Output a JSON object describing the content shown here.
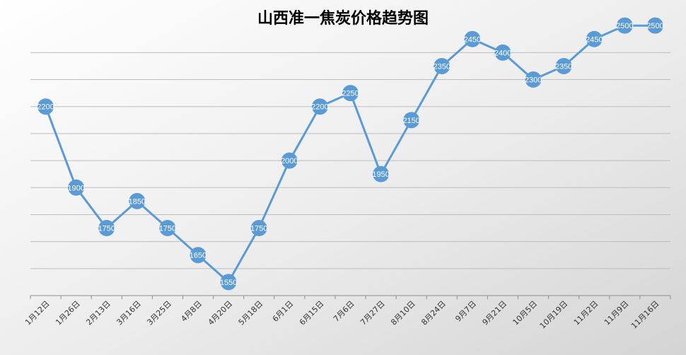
{
  "chart_data": {
    "type": "line",
    "title": "山西准一焦炭价格趋势图",
    "xlabel": "",
    "ylabel": "",
    "categories": [
      "1月12日",
      "1月26日",
      "2月13日",
      "3月16日",
      "3月25日",
      "4月8日",
      "4月20日",
      "5月18日",
      "6月1日",
      "6月15日",
      "7月6日",
      "7月27日",
      "8月10日",
      "8月24日",
      "9月7日",
      "9月21日",
      "10月5日",
      "10月19日",
      "11月2日",
      "11月9日",
      "11月16日"
    ],
    "series": [
      {
        "values": [
          2200,
          1900,
          1750,
          1850,
          1750,
          1650,
          1550,
          1750,
          2000,
          2200,
          2250,
          1950,
          2150,
          2350,
          2450,
          2400,
          2300,
          2350,
          2450,
          2500,
          2500
        ]
      }
    ],
    "ylim": [
      1500,
      2600
    ],
    "grid": true,
    "data_labels": true,
    "colors": {
      "line": "#5b9bd5",
      "marker": "#5b9bd5",
      "label": "#ffffff",
      "grid": "#bdbdbd",
      "axis": "#8c8c8c",
      "title": "#1a1a1a"
    }
  }
}
